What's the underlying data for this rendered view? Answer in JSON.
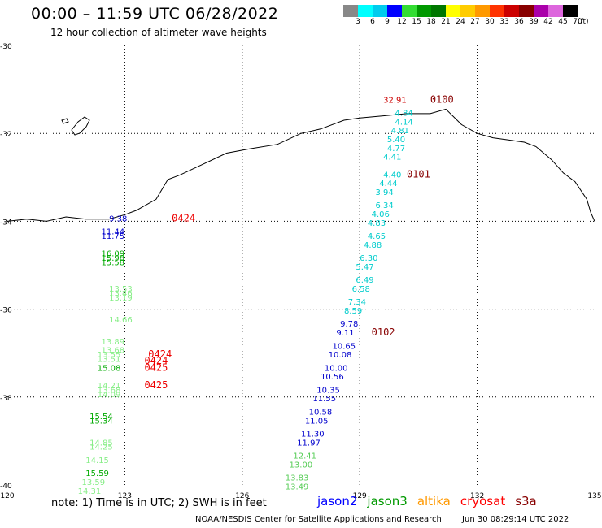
{
  "header": {
    "title": "00:00 – 11:59 UTC 06/28/2022",
    "subtitle": "12 hour collection of altimeter wave heights"
  },
  "legend": {
    "colors": [
      "#888888",
      "#00ffff",
      "#00ccee",
      "#0000ff",
      "#33dd33",
      "#009900",
      "#007700",
      "#ffff00",
      "#ffcc00",
      "#ff9900",
      "#ff3300",
      "#cc0000",
      "#880000",
      "#aa00aa",
      "#dd66dd",
      "#000000"
    ],
    "labels": [
      "3",
      "6",
      "9",
      "12",
      "15",
      "18",
      "21",
      "24",
      "27",
      "30",
      "33",
      "36",
      "39",
      "42",
      "45",
      "70"
    ],
    "unit": "(ft)"
  },
  "axes": {
    "lat_ticks": [
      "-30",
      "-32",
      "-34",
      "-36",
      "-38",
      "-40"
    ],
    "lon_ticks": [
      "120",
      "123",
      "126",
      "129",
      "132",
      "135"
    ]
  },
  "tracks": [
    {
      "satellite": "s3a",
      "color": "#880000",
      "labels": [
        {
          "text": "0100",
          "lon": 130.8,
          "lat": -31.3
        },
        {
          "text": "0101",
          "lon": 130.2,
          "lat": -33.0
        },
        {
          "text": "0102",
          "lon": 129.3,
          "lat": -36.6
        }
      ]
    },
    {
      "satellite": "cryosat",
      "color": "#ee0000",
      "labels": [
        {
          "text": "0424",
          "lon": 124.2,
          "lat": -34.0
        },
        {
          "text": "0424",
          "lon": 123.6,
          "lat": -37.1
        },
        {
          "text": "0424",
          "lon": 123.5,
          "lat": -37.25
        },
        {
          "text": "0425",
          "lon": 123.5,
          "lat": -37.4
        },
        {
          "text": "0425",
          "lon": 123.5,
          "lat": -37.8
        }
      ]
    },
    {
      "satellite": "east_track",
      "values": [
        {
          "text": "32.91",
          "lon": 129.6,
          "lat": -31.3,
          "color": "#cc0000"
        },
        {
          "text": "4.84",
          "lon": 129.9,
          "lat": -31.6,
          "color": "#00cccc"
        },
        {
          "text": "4.14",
          "lon": 129.9,
          "lat": -31.8,
          "color": "#00cccc"
        },
        {
          "text": "4.81",
          "lon": 129.8,
          "lat": -32.0,
          "color": "#00cccc"
        },
        {
          "text": "5.40",
          "lon": 129.7,
          "lat": -32.2,
          "color": "#00cccc"
        },
        {
          "text": "4.77",
          "lon": 129.7,
          "lat": -32.4,
          "color": "#00cccc"
        },
        {
          "text": "4.41",
          "lon": 129.6,
          "lat": -32.6,
          "color": "#00cccc"
        },
        {
          "text": "4.40",
          "lon": 129.6,
          "lat": -33.0,
          "color": "#00cccc"
        },
        {
          "text": "4.44",
          "lon": 129.5,
          "lat": -33.2,
          "color": "#00cccc"
        },
        {
          "text": "3.94",
          "lon": 129.4,
          "lat": -33.4,
          "color": "#00cccc"
        },
        {
          "text": "6.34",
          "lon": 129.4,
          "lat": -33.7,
          "color": "#00cccc"
        },
        {
          "text": "4.06",
          "lon": 129.3,
          "lat": -33.9,
          "color": "#00cccc"
        },
        {
          "text": "4.83",
          "lon": 129.2,
          "lat": -34.1,
          "color": "#00cccc"
        },
        {
          "text": "4.65",
          "lon": 129.2,
          "lat": -34.4,
          "color": "#00cccc"
        },
        {
          "text": "4.88",
          "lon": 129.1,
          "lat": -34.6,
          "color": "#00cccc"
        },
        {
          "text": "6.30",
          "lon": 129.0,
          "lat": -34.9,
          "color": "#00cccc"
        },
        {
          "text": "5.47",
          "lon": 128.9,
          "lat": -35.1,
          "color": "#00cccc"
        },
        {
          "text": "6.49",
          "lon": 128.9,
          "lat": -35.4,
          "color": "#00cccc"
        },
        {
          "text": "6.58",
          "lon": 128.8,
          "lat": -35.6,
          "color": "#00cccc"
        },
        {
          "text": "7.34",
          "lon": 128.7,
          "lat": -35.9,
          "color": "#00cccc"
        },
        {
          "text": "8.59",
          "lon": 128.6,
          "lat": -36.1,
          "color": "#00cccc"
        },
        {
          "text": "9.78",
          "lon": 128.5,
          "lat": -36.4,
          "color": "#0000cc"
        },
        {
          "text": "9.11",
          "lon": 128.4,
          "lat": -36.6,
          "color": "#0000cc"
        },
        {
          "text": "10.65",
          "lon": 128.3,
          "lat": -36.9,
          "color": "#0000cc"
        },
        {
          "text": "10.08",
          "lon": 128.2,
          "lat": -37.1,
          "color": "#0000cc"
        },
        {
          "text": "10.00",
          "lon": 128.1,
          "lat": -37.4,
          "color": "#0000cc"
        },
        {
          "text": "10.56",
          "lon": 128.0,
          "lat": -37.6,
          "color": "#0000cc"
        },
        {
          "text": "10.35",
          "lon": 127.9,
          "lat": -37.9,
          "color": "#0000cc"
        },
        {
          "text": "11.55",
          "lon": 127.8,
          "lat": -38.1,
          "color": "#0000cc"
        },
        {
          "text": "10.58",
          "lon": 127.7,
          "lat": -38.4,
          "color": "#0000cc"
        },
        {
          "text": "11.05",
          "lon": 127.6,
          "lat": -38.6,
          "color": "#0000cc"
        },
        {
          "text": "11.30",
          "lon": 127.5,
          "lat": -38.9,
          "color": "#0000cc"
        },
        {
          "text": "11.97",
          "lon": 127.4,
          "lat": -39.1,
          "color": "#0000cc"
        },
        {
          "text": "12.41",
          "lon": 127.3,
          "lat": -39.4,
          "color": "#55cc55"
        },
        {
          "text": "13.00",
          "lon": 127.2,
          "lat": -39.6,
          "color": "#55cc55"
        },
        {
          "text": "13.83",
          "lon": 127.1,
          "lat": -39.9,
          "color": "#55cc55"
        },
        {
          "text": "13.49",
          "lon": 127.1,
          "lat": -40.1,
          "color": "#55cc55"
        }
      ]
    },
    {
      "satellite": "west_track",
      "values": [
        {
          "text": "9.38",
          "lon": 122.6,
          "lat": -34.0,
          "color": "#0000cc"
        },
        {
          "text": "11.44",
          "lon": 122.4,
          "lat": -34.3,
          "color": "#0000cc"
        },
        {
          "text": "11.75",
          "lon": 122.4,
          "lat": -34.4,
          "color": "#0000cc"
        },
        {
          "text": "16.09",
          "lon": 122.4,
          "lat": -34.8,
          "color": "#00aa00"
        },
        {
          "text": "15.98",
          "lon": 122.4,
          "lat": -34.9,
          "color": "#00aa00"
        },
        {
          "text": "15.58",
          "lon": 122.4,
          "lat": -35.0,
          "color": "#00aa00"
        },
        {
          "text": "13.53",
          "lon": 122.6,
          "lat": -35.6,
          "color": "#88ee88"
        },
        {
          "text": "13.46",
          "lon": 122.6,
          "lat": -35.7,
          "color": "#88ee88"
        },
        {
          "text": "13.19",
          "lon": 122.6,
          "lat": -35.8,
          "color": "#88ee88"
        },
        {
          "text": "14.66",
          "lon": 122.6,
          "lat": -36.3,
          "color": "#88ee88"
        },
        {
          "text": "13.89",
          "lon": 122.4,
          "lat": -36.8,
          "color": "#88ee88"
        },
        {
          "text": "13.68",
          "lon": 122.4,
          "lat": -37.0,
          "color": "#88ee88"
        },
        {
          "text": "13.55",
          "lon": 122.3,
          "lat": -37.1,
          "color": "#88ee88"
        },
        {
          "text": "13.51",
          "lon": 122.3,
          "lat": -37.2,
          "color": "#88ee88"
        },
        {
          "text": "15.08",
          "lon": 122.3,
          "lat": -37.4,
          "color": "#00aa00"
        },
        {
          "text": "14.21",
          "lon": 122.3,
          "lat": -37.8,
          "color": "#88ee88"
        },
        {
          "text": "13.68",
          "lon": 122.3,
          "lat": -37.9,
          "color": "#88ee88"
        },
        {
          "text": "14.09",
          "lon": 122.3,
          "lat": -38.0,
          "color": "#88ee88"
        },
        {
          "text": "15.54",
          "lon": 122.1,
          "lat": -38.5,
          "color": "#00aa00"
        },
        {
          "text": "15.34",
          "lon": 122.1,
          "lat": -38.6,
          "color": "#00aa00"
        },
        {
          "text": "14.85",
          "lon": 122.1,
          "lat": -39.1,
          "color": "#88ee88"
        },
        {
          "text": "14.25",
          "lon": 122.1,
          "lat": -39.2,
          "color": "#88ee88"
        },
        {
          "text": "14.15",
          "lon": 122.0,
          "lat": -39.5,
          "color": "#88ee88"
        },
        {
          "text": "15.59",
          "lon": 122.0,
          "lat": -39.8,
          "color": "#00aa00"
        },
        {
          "text": "13.59",
          "lon": 121.9,
          "lat": -40.0,
          "color": "#88ee88"
        },
        {
          "text": "14.31",
          "lon": 121.8,
          "lat": -40.2,
          "color": "#88ee88"
        }
      ]
    }
  ],
  "coastline": [
    [
      120,
      -34.0
    ],
    [
      120.5,
      -33.95
    ],
    [
      121,
      -34.0
    ],
    [
      121.5,
      -33.9
    ],
    [
      122,
      -33.95
    ],
    [
      122.6,
      -33.95
    ],
    [
      123.0,
      -33.85
    ],
    [
      123.3,
      -33.75
    ],
    [
      123.8,
      -33.5
    ],
    [
      124.1,
      -33.05
    ],
    [
      124.4,
      -32.95
    ],
    [
      125.0,
      -32.7
    ],
    [
      125.6,
      -32.45
    ],
    [
      126.2,
      -32.35
    ],
    [
      126.9,
      -32.25
    ],
    [
      127.5,
      -32.0
    ],
    [
      128.0,
      -31.9
    ],
    [
      128.6,
      -31.7
    ],
    [
      129.0,
      -31.65
    ],
    [
      129.6,
      -31.6
    ],
    [
      130.2,
      -31.55
    ],
    [
      130.8,
      -31.55
    ],
    [
      131.2,
      -31.45
    ],
    [
      131.6,
      -31.8
    ],
    [
      132.0,
      -32.0
    ],
    [
      132.4,
      -32.1
    ],
    [
      132.8,
      -32.15
    ],
    [
      133.2,
      -32.2
    ],
    [
      133.5,
      -32.3
    ],
    [
      133.9,
      -32.6
    ],
    [
      134.2,
      -32.9
    ],
    [
      134.5,
      -33.1
    ],
    [
      134.8,
      -33.5
    ],
    [
      134.9,
      -33.8
    ],
    [
      135.0,
      -34.0
    ]
  ],
  "footer": {
    "note": "note: 1) Time is in UTC; 2) SWH is in feet",
    "satellites": [
      {
        "name": "jason2",
        "color": "#0000ff"
      },
      {
        "name": "jason3",
        "color": "#009900"
      },
      {
        "name": "altika",
        "color": "#ff9900"
      },
      {
        "name": "cryosat",
        "color": "#ff0000"
      },
      {
        "name": "s3a",
        "color": "#880000"
      }
    ],
    "credit": "NOAA/NESDIS Center for Satellite Applications and Research",
    "timestamp": "Jun 30 08:29:14 UTC 2022"
  }
}
